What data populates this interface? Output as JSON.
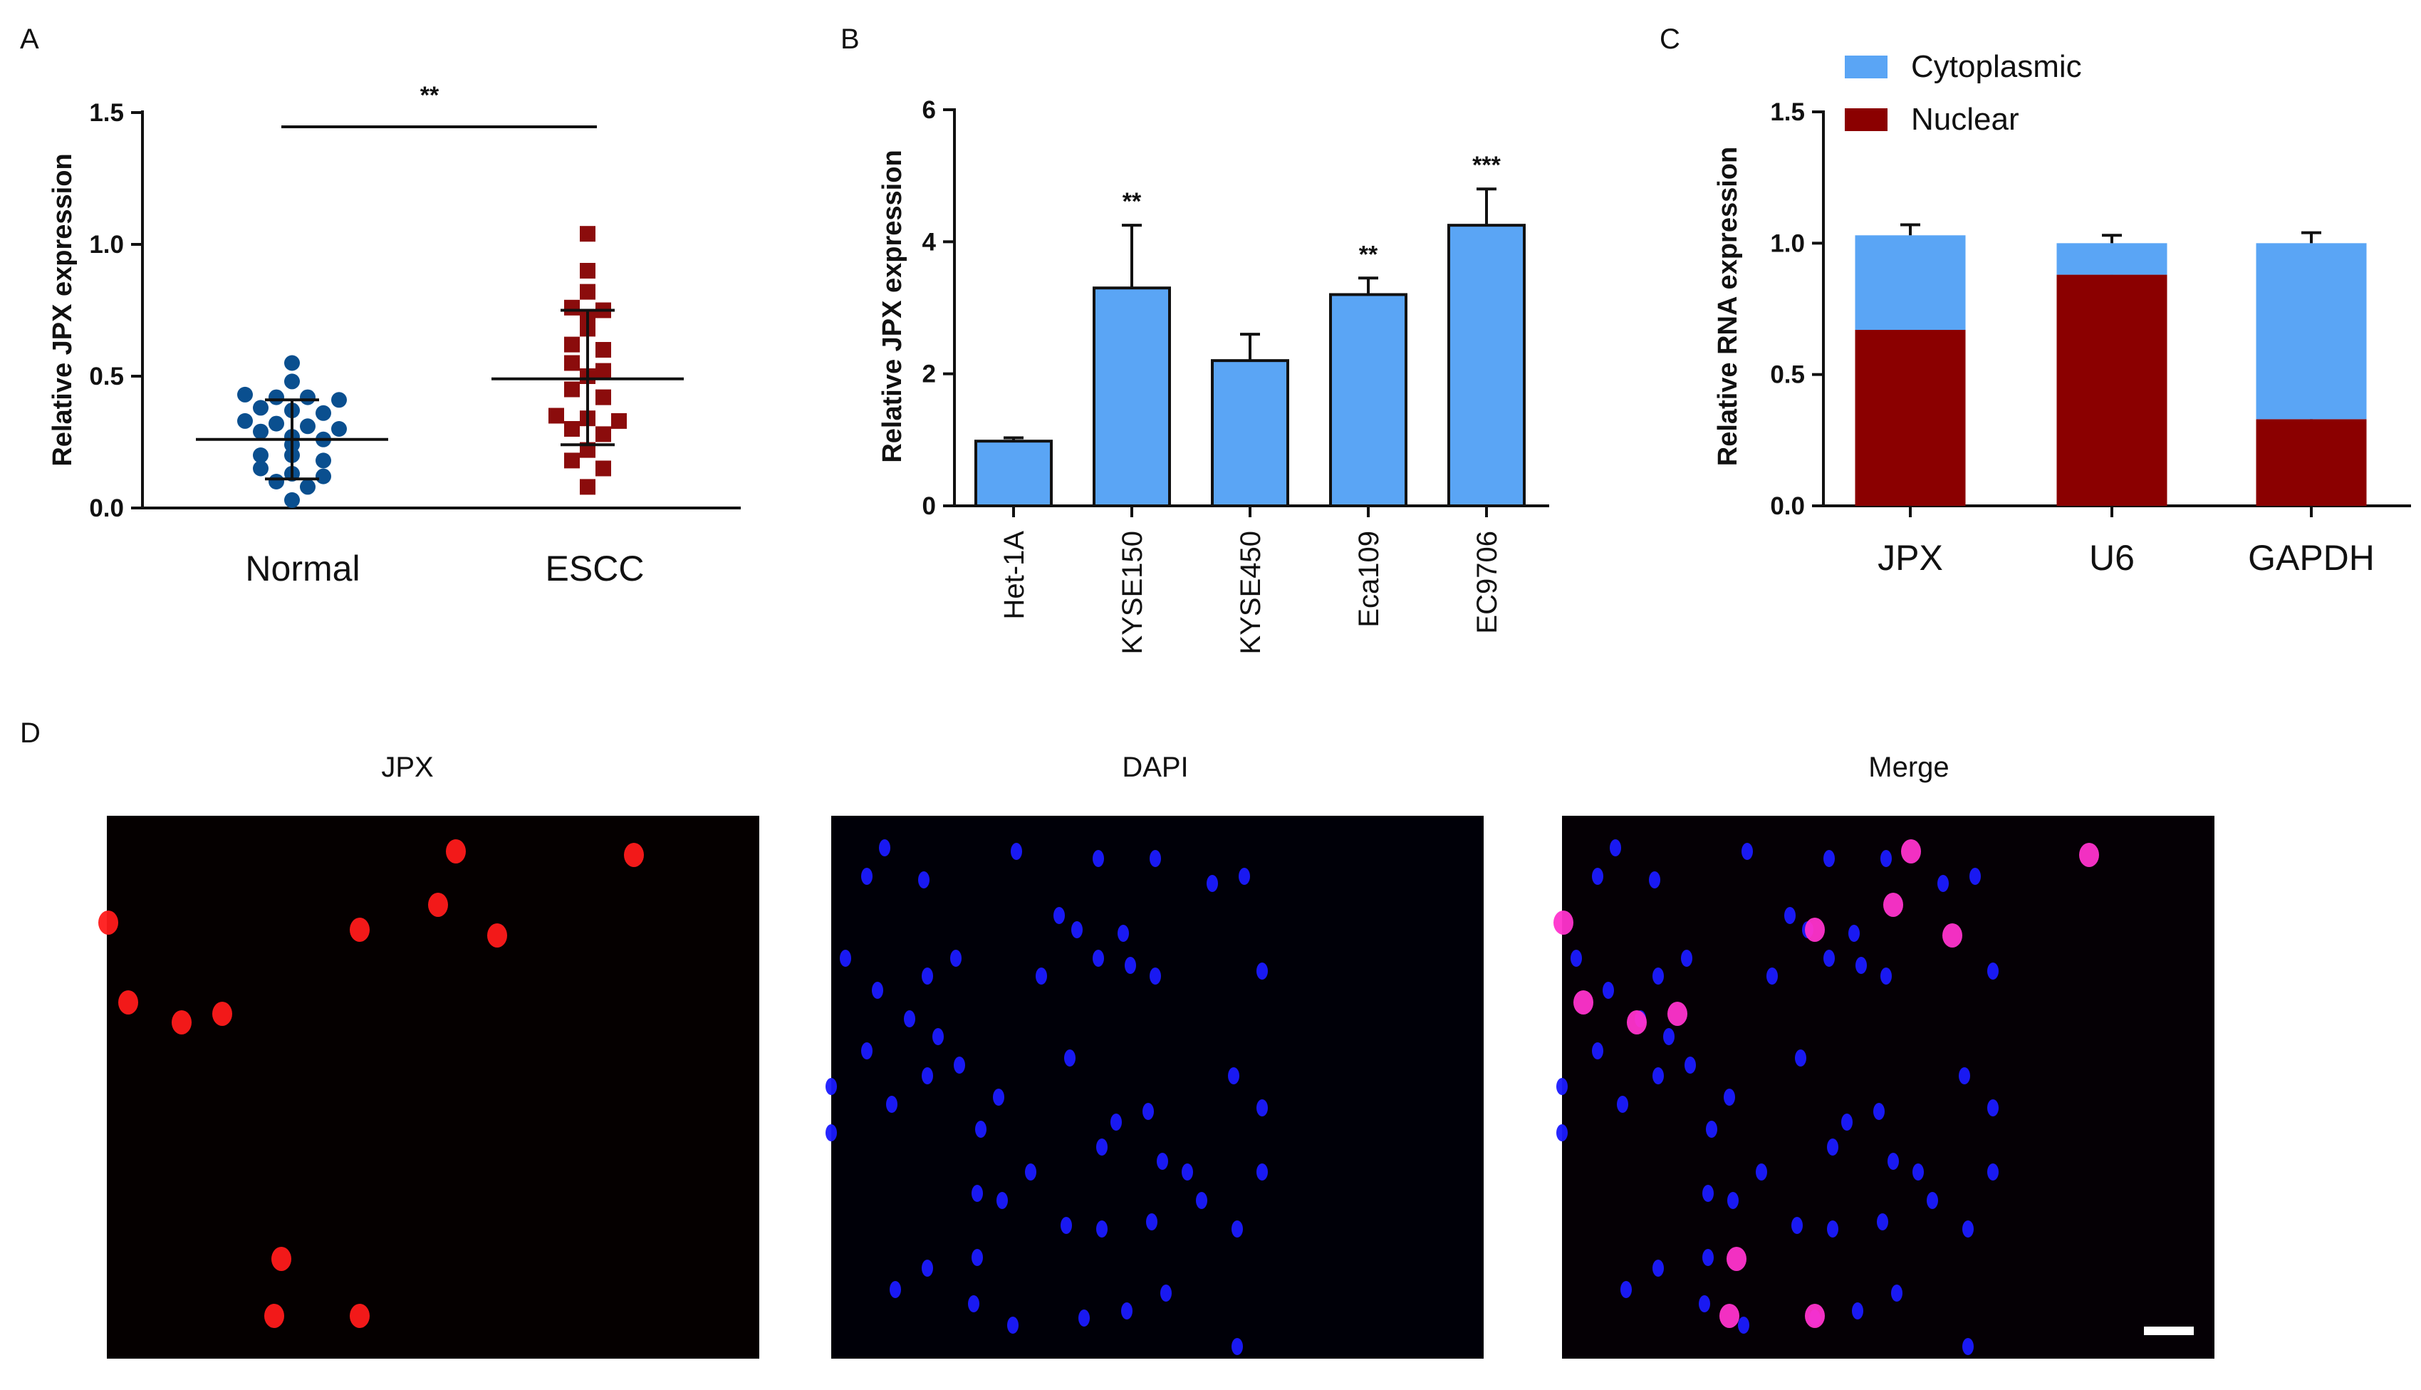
{
  "panels": {
    "a": "A",
    "b": "B",
    "c": "C",
    "d": "D"
  },
  "chart_data": [
    {
      "type": "scatter",
      "ylabel": "Relative JPX expression",
      "ylim": [
        0,
        1.5
      ],
      "yticks": [
        "0.0",
        "0.5",
        "1.0",
        "1.5"
      ],
      "categories": [
        "Normal",
        "ESCC"
      ],
      "significance": "**",
      "groups": [
        {
          "name": "Normal",
          "color": "#0a4f8f",
          "marker": "circle",
          "mean": 0.26,
          "sd_low": 0.11,
          "sd_high": 0.41,
          "values": [
            0.55,
            0.48,
            0.43,
            0.42,
            0.42,
            0.41,
            0.38,
            0.37,
            0.36,
            0.33,
            0.32,
            0.31,
            0.3,
            0.29,
            0.27,
            0.26,
            0.24,
            0.2,
            0.2,
            0.18,
            0.15,
            0.13,
            0.12,
            0.1,
            0.08,
            0.03
          ]
        },
        {
          "name": "ESCC",
          "color": "#8b0c0c",
          "marker": "square",
          "mean": 0.49,
          "sd_low": 0.24,
          "sd_high": 0.75,
          "values": [
            1.04,
            0.9,
            0.82,
            0.76,
            0.75,
            0.72,
            0.68,
            0.62,
            0.6,
            0.55,
            0.52,
            0.5,
            0.45,
            0.42,
            0.35,
            0.34,
            0.33,
            0.3,
            0.28,
            0.22,
            0.18,
            0.15,
            0.08
          ]
        }
      ]
    },
    {
      "type": "bar",
      "ylabel": "Relative JPX expression",
      "ylim": [
        0,
        6
      ],
      "yticks": [
        "0",
        "2",
        "4",
        "6"
      ],
      "categories": [
        "Het-1A",
        "KYSE150",
        "KYSE450",
        "Eca109",
        "EC9706"
      ],
      "values": [
        0.98,
        3.3,
        2.2,
        3.2,
        4.25
      ],
      "errors": [
        0.05,
        0.95,
        0.4,
        0.25,
        0.55
      ],
      "significance": [
        "",
        "**",
        "",
        "**",
        "***"
      ],
      "color": "#5aa5f5"
    },
    {
      "type": "bar",
      "stacked": true,
      "ylabel": "Relative RNA expression",
      "ylim": [
        0,
        1.5
      ],
      "yticks": [
        "0.0",
        "0.5",
        "1.0",
        "1.5"
      ],
      "categories": [
        "JPX",
        "U6",
        "GAPDH"
      ],
      "series": [
        {
          "name": "Nuclear",
          "color": "#8b0000",
          "values": [
            0.67,
            0.88,
            0.33
          ],
          "errors": [
            0.09,
            0.03,
            0.05
          ]
        },
        {
          "name": "Cytoplasmic",
          "color": "#5aa5f5",
          "values": [
            0.36,
            0.12,
            0.67
          ],
          "errors": [
            0.04,
            0.03,
            0.04
          ]
        }
      ],
      "legend": [
        "Cytoplasmic",
        "Nuclear"
      ]
    }
  ],
  "images": {
    "titles": [
      "JPX",
      "DAPI",
      "Merge"
    ],
    "colors": {
      "jpx": "#ff1a1a",
      "dapi": "#1a1aff",
      "merge": "#ff33cc"
    }
  }
}
